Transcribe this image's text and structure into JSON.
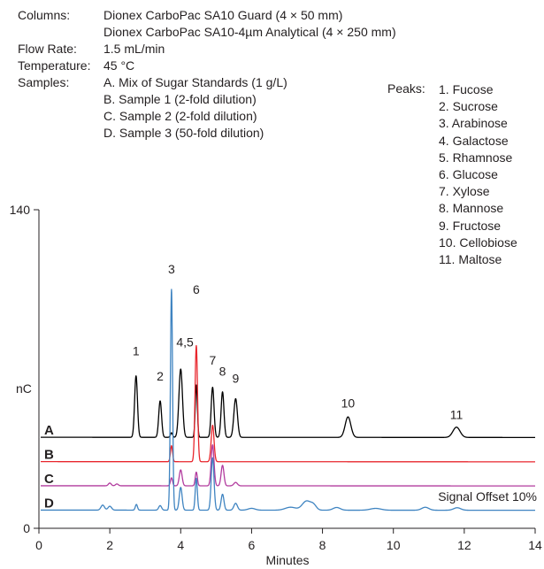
{
  "header": {
    "rows": [
      {
        "label": "Columns:",
        "lines": [
          "Dionex CarboPac SA10 Guard (4 × 50 mm)",
          "Dionex CarboPac SA10-4µm Analytical (4 × 250 mm)"
        ]
      },
      {
        "label": "Flow Rate:",
        "lines": [
          "1.5 mL/min"
        ]
      },
      {
        "label": "Temperature:",
        "lines": [
          "45 °C"
        ]
      },
      {
        "label": "Samples:",
        "lines": [
          "A. Mix of Sugar Standards (1 g/L)",
          "B. Sample 1 (2-fold dilution)",
          "C. Sample 2 (2-fold dilution)",
          "D. Sample 3 (50-fold dilution)"
        ]
      }
    ]
  },
  "peaks_label": "Peaks:",
  "peaks": [
    "1. Fucose",
    "2. Sucrose",
    "3. Arabinose",
    "4. Galactose",
    "5. Rhamnose",
    "6. Glucose",
    "7. Xylose",
    "8. Mannose",
    "9. Fructose",
    "10. Cellobiose",
    "11. Maltose"
  ],
  "chart_data": {
    "type": "line",
    "xlabel": "Minutes",
    "ylabel": "nC",
    "xlim": [
      0,
      14
    ],
    "ylim": [
      0,
      140
    ],
    "x_ticks": [
      0,
      2,
      4,
      6,
      8,
      10,
      12,
      14
    ],
    "y_ticks": [
      0,
      140
    ],
    "annotation": "Signal Offset 10%",
    "colors": {
      "A": "#000000",
      "B": "#e8262d",
      "C": "#b23b9e",
      "D": "#3f84c1"
    },
    "series": [
      {
        "name": "A",
        "baseline": 40,
        "peaks": [
          [
            2.74,
            27,
            0.04
          ],
          [
            3.42,
            16,
            0.04
          ],
          [
            3.74,
            2,
            0.03
          ],
          [
            4.0,
            30,
            0.05
          ],
          [
            4.44,
            23,
            0.03
          ],
          [
            4.9,
            22,
            0.04
          ],
          [
            5.18,
            20,
            0.04
          ],
          [
            5.55,
            17,
            0.05
          ],
          [
            8.72,
            9,
            0.08
          ],
          [
            11.78,
            4.5,
            0.1
          ]
        ]
      },
      {
        "name": "B",
        "baseline": 29.3,
        "peaks": [
          [
            3.74,
            7,
            0.03
          ],
          [
            4.44,
            51,
            0.035
          ],
          [
            4.9,
            16,
            0.04
          ]
        ]
      },
      {
        "name": "C",
        "baseline": 18.7,
        "peaks": [
          [
            2.0,
            1.2,
            0.04
          ],
          [
            2.2,
            0.8,
            0.04
          ],
          [
            3.74,
            3.5,
            0.03
          ],
          [
            4.0,
            7,
            0.04
          ],
          [
            4.44,
            6,
            0.03
          ],
          [
            4.9,
            18,
            0.04
          ],
          [
            5.18,
            9,
            0.04
          ],
          [
            5.55,
            1.5,
            0.05
          ]
        ]
      },
      {
        "name": "D",
        "baseline": 8,
        "peaks": [
          [
            1.8,
            2.2,
            0.05
          ],
          [
            2.0,
            1.7,
            0.05
          ],
          [
            2.75,
            2.5,
            0.03
          ],
          [
            3.42,
            2,
            0.04
          ],
          [
            3.74,
            97,
            0.03
          ],
          [
            4.0,
            10,
            0.04
          ],
          [
            4.44,
            14,
            0.03
          ],
          [
            4.9,
            23,
            0.04
          ],
          [
            5.18,
            7,
            0.04
          ],
          [
            5.55,
            3,
            0.05
          ],
          [
            6.0,
            0.8,
            0.1
          ],
          [
            7.1,
            1.3,
            0.15
          ],
          [
            7.55,
            4,
            0.12
          ],
          [
            7.75,
            2,
            0.08
          ],
          [
            8.4,
            1.2,
            0.1
          ],
          [
            9.5,
            0.8,
            0.15
          ],
          [
            10.9,
            1.3,
            0.1
          ],
          [
            11.8,
            1.1,
            0.1
          ]
        ]
      }
    ],
    "peak_labels": [
      {
        "text": "1",
        "x": 2.74,
        "y": 76
      },
      {
        "text": "2",
        "x": 3.42,
        "y": 65
      },
      {
        "text": "3",
        "x": 3.74,
        "y": 112
      },
      {
        "text": "4,5",
        "x": 4.12,
        "y": 80
      },
      {
        "text": "6",
        "x": 4.44,
        "y": 103
      },
      {
        "text": "7",
        "x": 4.9,
        "y": 72
      },
      {
        "text": "8",
        "x": 5.18,
        "y": 67
      },
      {
        "text": "9",
        "x": 5.55,
        "y": 64
      },
      {
        "text": "10",
        "x": 8.72,
        "y": 53
      },
      {
        "text": "11",
        "x": 11.78,
        "y": 48
      }
    ]
  }
}
